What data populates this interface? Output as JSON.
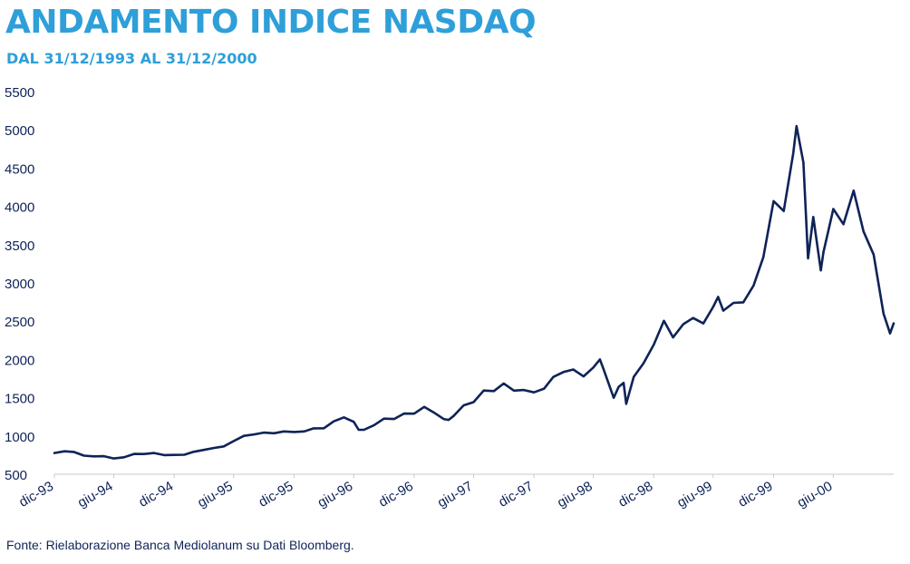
{
  "title": "ANDAMENTO INDICE NASDAQ",
  "subtitle": "DAL 31/12/1993 AL 31/12/2000",
  "source": "Fonte: Rielaborazione Banca Mediolanum su Dati Bloomberg.",
  "colors": {
    "title": "#2e9fd9",
    "line": "#0e2357",
    "text": "#0e2357",
    "axis": "#c8c8c8"
  },
  "chart_data": {
    "type": "line",
    "title": "ANDAMENTO INDICE NASDAQ",
    "xlabel": "",
    "ylabel": "",
    "ylim": [
      500,
      5500
    ],
    "yticks": [
      500,
      1000,
      1500,
      2000,
      2500,
      3000,
      3500,
      4000,
      4500,
      5000,
      5500
    ],
    "xlim": [
      "1993-12-31",
      "2000-12-31"
    ],
    "xticks": [
      {
        "date": "1993-12-31",
        "label": "dic-93"
      },
      {
        "date": "1994-06-30",
        "label": "giu-94"
      },
      {
        "date": "1994-12-31",
        "label": "dic-94"
      },
      {
        "date": "1995-06-30",
        "label": "giu-95"
      },
      {
        "date": "1995-12-31",
        "label": "dic-95"
      },
      {
        "date": "1996-06-30",
        "label": "giu-96"
      },
      {
        "date": "1996-12-31",
        "label": "dic-96"
      },
      {
        "date": "1997-06-30",
        "label": "giu-97"
      },
      {
        "date": "1997-12-31",
        "label": "dic-97"
      },
      {
        "date": "1998-06-30",
        "label": "giu-98"
      },
      {
        "date": "1998-12-31",
        "label": "dic-98"
      },
      {
        "date": "1999-06-30",
        "label": "giu-99"
      },
      {
        "date": "1999-12-31",
        "label": "dic-99"
      },
      {
        "date": "2000-06-30",
        "label": "giu-00"
      }
    ],
    "grid": false,
    "legend": "none",
    "series": [
      {
        "x": [
          "1993-12-31",
          "1994-01-31",
          "1994-02-28",
          "1994-03-31",
          "1994-04-30",
          "1994-05-31",
          "1994-06-30",
          "1994-07-31",
          "1994-08-31",
          "1994-09-30",
          "1994-10-31",
          "1994-11-30",
          "1994-12-31",
          "1995-01-31",
          "1995-02-28",
          "1995-03-31",
          "1995-04-30",
          "1995-05-31",
          "1995-06-30",
          "1995-07-31",
          "1995-08-31",
          "1995-09-30",
          "1995-10-31",
          "1995-11-30",
          "1995-12-31",
          "1996-01-31",
          "1996-02-29",
          "1996-03-31",
          "1996-04-30",
          "1996-05-31",
          "1996-06-30",
          "1996-07-15",
          "1996-07-31",
          "1996-08-31",
          "1996-09-30",
          "1996-10-31",
          "1996-11-30",
          "1996-12-31",
          "1997-01-31",
          "1997-02-28",
          "1997-03-31",
          "1997-04-15",
          "1997-04-30",
          "1997-05-31",
          "1997-06-30",
          "1997-07-31",
          "1997-08-31",
          "1997-09-30",
          "1997-10-31",
          "1997-11-30",
          "1997-12-31",
          "1998-01-31",
          "1998-02-28",
          "1998-03-31",
          "1998-04-30",
          "1998-05-31",
          "1998-06-30",
          "1998-07-20",
          "1998-07-31",
          "1998-08-31",
          "1998-09-15",
          "1998-09-30",
          "1998-10-08",
          "1998-10-31",
          "1998-11-30",
          "1998-12-31",
          "1999-01-31",
          "1999-02-28",
          "1999-03-31",
          "1999-04-30",
          "1999-05-31",
          "1999-06-30",
          "1999-07-15",
          "1999-07-31",
          "1999-08-31",
          "1999-09-30",
          "1999-10-31",
          "1999-11-30",
          "1999-12-31",
          "2000-01-31",
          "2000-02-29",
          "2000-03-10",
          "2000-03-31",
          "2000-04-14",
          "2000-04-30",
          "2000-05-23",
          "2000-05-31",
          "2000-06-30",
          "2000-07-31",
          "2000-08-31",
          "2000-09-30",
          "2000-10-31",
          "2000-11-30",
          "2000-12-20",
          "2000-12-31"
        ],
        "y": [
          777,
          800,
          792,
          743,
          733,
          736,
          706,
          722,
          765,
          764,
          777,
          750,
          752,
          755,
          793,
          817,
          843,
          864,
          933,
          1001,
          1020,
          1044,
          1036,
          1059,
          1052,
          1059,
          1100,
          1101,
          1191,
          1243,
          1185,
          1080,
          1081,
          1141,
          1226,
          1222,
          1293,
          1291,
          1380,
          1309,
          1222,
          1210,
          1261,
          1400,
          1442,
          1594,
          1587,
          1686,
          1593,
          1601,
          1570,
          1619,
          1771,
          1835,
          1868,
          1779,
          1895,
          2000,
          1872,
          1499,
          1640,
          1694,
          1420,
          1772,
          1950,
          2193,
          2505,
          2288,
          2461,
          2542,
          2470,
          2686,
          2818,
          2638,
          2739,
          2746,
          2966,
          3336,
          4069,
          3940,
          4696,
          5049,
          4573,
          3321,
          3861,
          3164,
          3400,
          3966,
          3767,
          4206,
          3673,
          3370,
          2598,
          2340,
          2471
        ]
      }
    ]
  }
}
